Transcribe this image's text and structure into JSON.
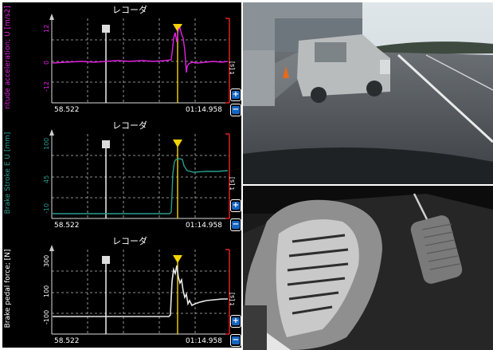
{
  "recorders": [
    {
      "title": "レコーダ",
      "ylabel": "ritude acceleration; U [m/s2]",
      "yticks": [
        "12",
        "0",
        "-12"
      ],
      "time_start": "58.522",
      "time_end": "01:14.958",
      "axis_unit": "t [s]",
      "trace_color": "#e020e0",
      "label_color": "#e020e0"
    },
    {
      "title": "レコーダ",
      "ylabel": "Brake Stroke E U [mm]",
      "yticks": [
        "100",
        "45",
        "-10"
      ],
      "time_start": "58.522",
      "time_end": "01:14.958",
      "axis_unit": "t [s]",
      "trace_color": "#2a9d8f",
      "label_color": "#2a9d8f"
    },
    {
      "title": "レコーダ",
      "ylabel": "Brake pedal force; [N]",
      "yticks": [
        "300",
        "100",
        "-100"
      ],
      "time_start": "58.522",
      "time_end": "01:14.958",
      "axis_unit": "t [s]",
      "trace_color": "#e8e8e8",
      "label_color": "#ffffff"
    }
  ],
  "zoom_in_icon": "plus-icon",
  "zoom_out_icon": "minus-icon",
  "cursor_marker_icon": "yellow-triangle-icon",
  "marker_icon": "white-flag-icon",
  "colors": {
    "cursor": "#f5d300",
    "grid": "#bbbbbb",
    "range_mark": "#e02020",
    "button": "#1565c0"
  }
}
